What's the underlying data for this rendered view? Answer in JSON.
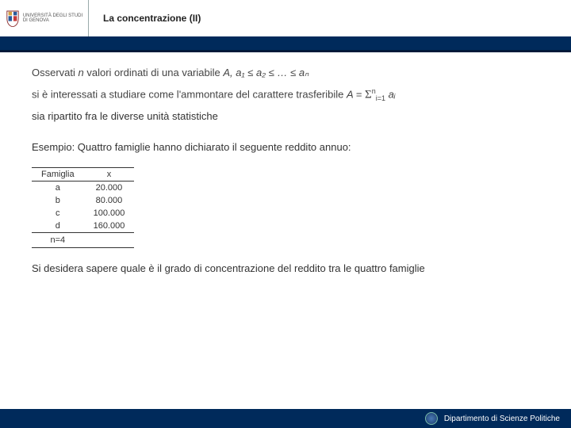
{
  "header": {
    "uni_line1": "UNIVERSITÀ DEGLI STUDI",
    "uni_line2": "DI GENOVA",
    "title": "La concentrazione (II)"
  },
  "body": {
    "math1_pre": "Osservati ",
    "math1_var": "n ",
    "math1_mid": "valori ordinati di una variabile ",
    "math1_A": "A, ",
    "math1_chain": "a₁ ≤ a₂ ≤ … ≤ aₙ",
    "math2_pre": "si è interessati a studiare come l'ammontare del carattere trasferibile ",
    "math2_A": "A ",
    "math2_eq": "= ",
    "math2_sum": "Σ",
    "math2_sub": "i=1",
    "math2_sup": "n",
    "math2_post": " aᵢ",
    "para1": "sia ripartito fra le diverse unità statistiche",
    "example_intro": "Esempio: Quattro famiglie hanno dichiarato il seguente reddito annuo:",
    "final": "Si desidera sapere quale è il grado di concentrazione del reddito tra le quattro famiglie"
  },
  "table": {
    "col1": "Famiglia",
    "col2": "x",
    "rows": [
      {
        "f": "a",
        "x": "20.000"
      },
      {
        "f": "b",
        "x": "80.000"
      },
      {
        "f": "c",
        "x": "100.000"
      },
      {
        "f": "d",
        "x": "160.000"
      }
    ],
    "nlabel": "n=4"
  },
  "footer": {
    "dept": "Dipartimento di Scienze Politiche"
  },
  "colors": {
    "bar": "#002a5b",
    "bar_shadow": "#001a3a"
  }
}
